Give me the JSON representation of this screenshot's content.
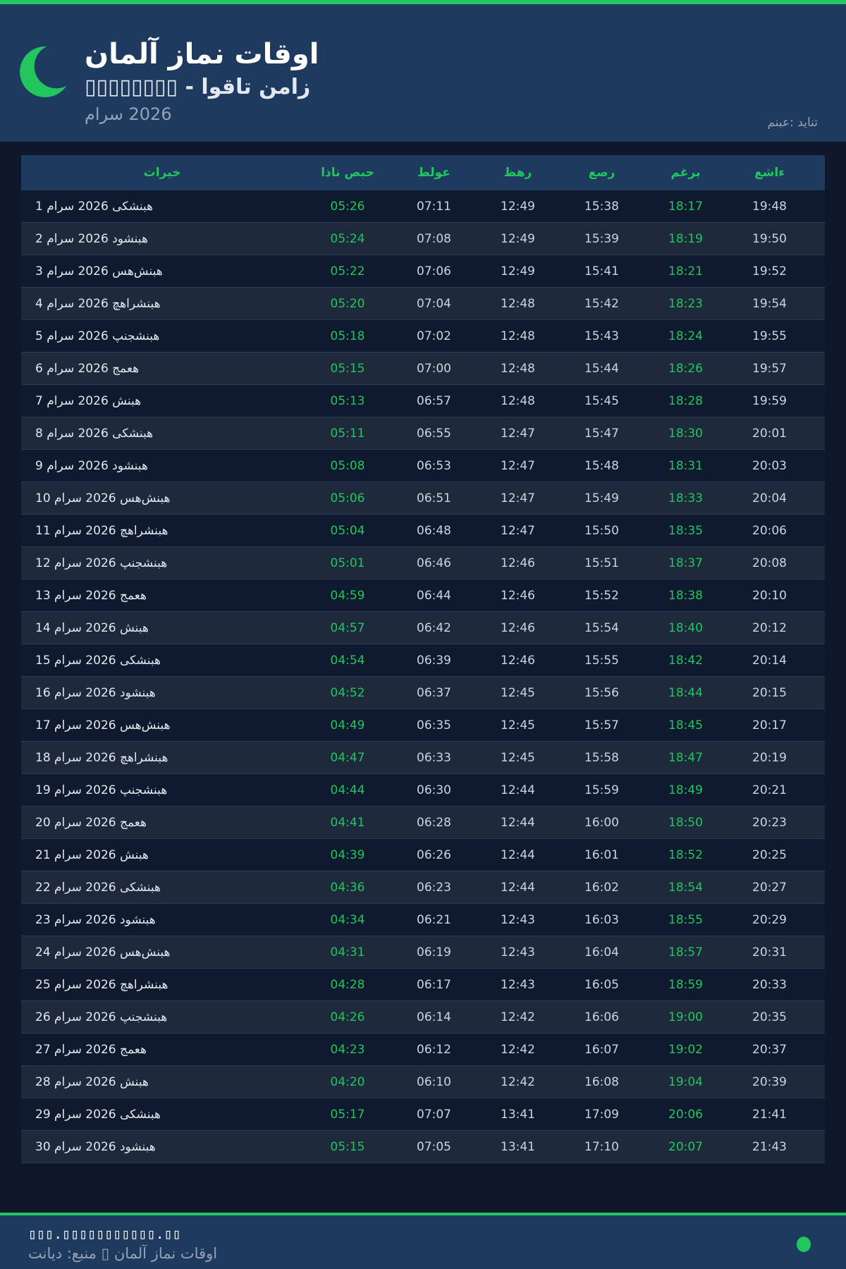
{
  "header": {
    "title": "اوقات نماز آلمان",
    "subtitle": "▯▯▯▯▯▯▯▯ - اوقات نماز",
    "month": "مارس 2026",
    "source": "منبع: دیانت",
    "icon": "crescent-moon-icon"
  },
  "colors": {
    "accent": "#22c55e",
    "header_bg": "#1e3a5f",
    "page_bg": "#0f172a"
  },
  "table": {
    "columns": [
      "تاریخ",
      "اذان صبح",
      "طلوع",
      "ظهر",
      "عصر",
      "مغرب",
      "عشاء"
    ],
    "rows": [
      [
        "1 مارس 2026 یکشنبه",
        "05:26",
        "07:11",
        "12:49",
        "15:38",
        "18:17",
        "19:48"
      ],
      [
        "2 مارس 2026 دوشنبه",
        "05:24",
        "07:08",
        "12:49",
        "15:39",
        "18:19",
        "19:50"
      ],
      [
        "3 مارس 2026 سه‌شنبه",
        "05:22",
        "07:06",
        "12:49",
        "15:41",
        "18:21",
        "19:52"
      ],
      [
        "4 مارس 2026 چهارشنبه",
        "05:20",
        "07:04",
        "12:48",
        "15:42",
        "18:23",
        "19:54"
      ],
      [
        "5 مارس 2026 پنجشنبه",
        "05:18",
        "07:02",
        "12:48",
        "15:43",
        "18:24",
        "19:55"
      ],
      [
        "6 مارس 2026 جمعه",
        "05:15",
        "07:00",
        "12:48",
        "15:44",
        "18:26",
        "19:57"
      ],
      [
        "7 مارس 2026 شنبه",
        "05:13",
        "06:57",
        "12:48",
        "15:45",
        "18:28",
        "19:59"
      ],
      [
        "8 مارس 2026 یکشنبه",
        "05:11",
        "06:55",
        "12:47",
        "15:47",
        "18:30",
        "20:01"
      ],
      [
        "9 مارس 2026 دوشنبه",
        "05:08",
        "06:53",
        "12:47",
        "15:48",
        "18:31",
        "20:03"
      ],
      [
        "10 مارس 2026 سه‌شنبه",
        "05:06",
        "06:51",
        "12:47",
        "15:49",
        "18:33",
        "20:04"
      ],
      [
        "11 مارس 2026 چهارشنبه",
        "05:04",
        "06:48",
        "12:47",
        "15:50",
        "18:35",
        "20:06"
      ],
      [
        "12 مارس 2026 پنجشنبه",
        "05:01",
        "06:46",
        "12:46",
        "15:51",
        "18:37",
        "20:08"
      ],
      [
        "13 مارس 2026 جمعه",
        "04:59",
        "06:44",
        "12:46",
        "15:52",
        "18:38",
        "20:10"
      ],
      [
        "14 مارس 2026 شنبه",
        "04:57",
        "06:42",
        "12:46",
        "15:54",
        "18:40",
        "20:12"
      ],
      [
        "15 مارس 2026 یکشنبه",
        "04:54",
        "06:39",
        "12:46",
        "15:55",
        "18:42",
        "20:14"
      ],
      [
        "16 مارس 2026 دوشنبه",
        "04:52",
        "06:37",
        "12:45",
        "15:56",
        "18:44",
        "20:15"
      ],
      [
        "17 مارس 2026 سه‌شنبه",
        "04:49",
        "06:35",
        "12:45",
        "15:57",
        "18:45",
        "20:17"
      ],
      [
        "18 مارس 2026 چهارشنبه",
        "04:47",
        "06:33",
        "12:45",
        "15:58",
        "18:47",
        "20:19"
      ],
      [
        "19 مارس 2026 پنجشنبه",
        "04:44",
        "06:30",
        "12:44",
        "15:59",
        "18:49",
        "20:21"
      ],
      [
        "20 مارس 2026 جمعه",
        "04:41",
        "06:28",
        "12:44",
        "16:00",
        "18:50",
        "20:23"
      ],
      [
        "21 مارس 2026 شنبه",
        "04:39",
        "06:26",
        "12:44",
        "16:01",
        "18:52",
        "20:25"
      ],
      [
        "22 مارس 2026 یکشنبه",
        "04:36",
        "06:23",
        "12:44",
        "16:02",
        "18:54",
        "20:27"
      ],
      [
        "23 مارس 2026 دوشنبه",
        "04:34",
        "06:21",
        "12:43",
        "16:03",
        "18:55",
        "20:29"
      ],
      [
        "24 مارس 2026 سه‌شنبه",
        "04:31",
        "06:19",
        "12:43",
        "16:04",
        "18:57",
        "20:31"
      ],
      [
        "25 مارس 2026 چهارشنبه",
        "04:28",
        "06:17",
        "12:43",
        "16:05",
        "18:59",
        "20:33"
      ],
      [
        "26 مارس 2026 پنجشنبه",
        "04:26",
        "06:14",
        "12:42",
        "16:06",
        "19:00",
        "20:35"
      ],
      [
        "27 مارس 2026 جمعه",
        "04:23",
        "06:12",
        "12:42",
        "16:07",
        "19:02",
        "20:37"
      ],
      [
        "28 مارس 2026 شنبه",
        "04:20",
        "06:10",
        "12:42",
        "16:08",
        "19:04",
        "20:39"
      ],
      [
        "29 مارس 2026 یکشنبه",
        "05:17",
        "07:07",
        "13:41",
        "17:09",
        "20:06",
        "21:41"
      ],
      [
        "30 مارس 2026 دوشنبه",
        "05:15",
        "07:05",
        "13:41",
        "17:10",
        "20:07",
        "21:43"
      ]
    ]
  },
  "footer": {
    "url": "▯▯▯.▯▯▯▯▯▯▯▯▯▯▯.▯▯",
    "text": "اوقات نماز آلمان ▯ منبع: دیانت"
  }
}
